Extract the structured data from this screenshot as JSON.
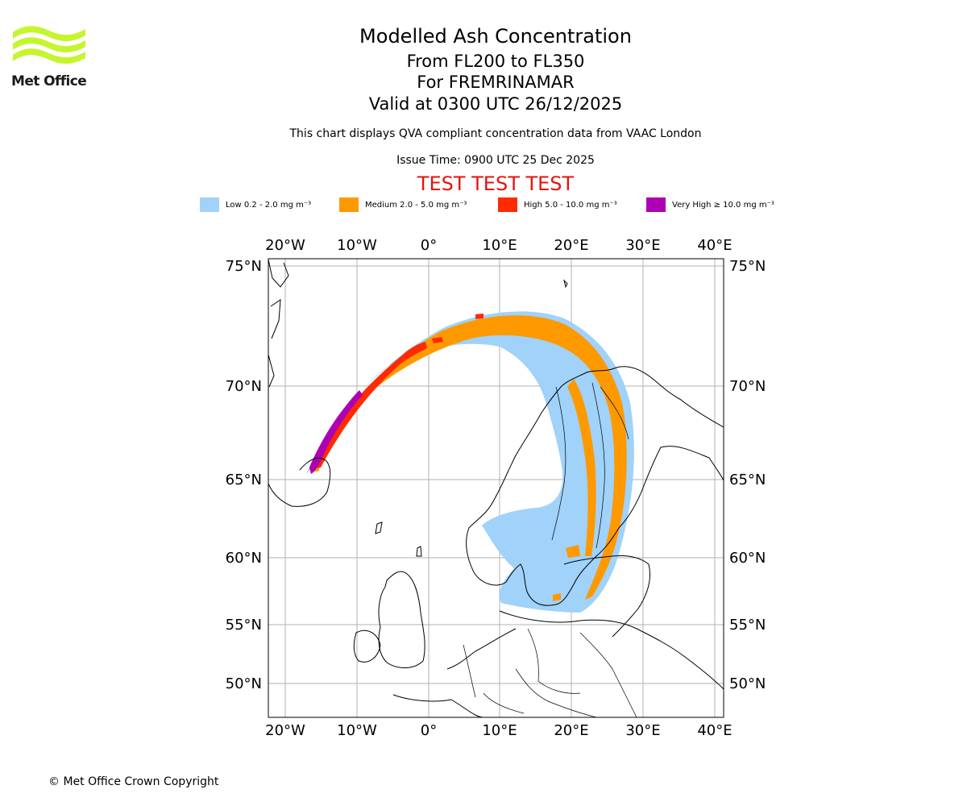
{
  "brand": {
    "name": "Met Office",
    "logo_color": "#c6f52e",
    "text_color": "#1a1a1a"
  },
  "header": {
    "title": "Modelled Ash Concentration",
    "levels": "From FL200 to FL350",
    "event": "For FREMRINAMAR",
    "valid": "Valid at 0300 UTC 26/12/2025",
    "compliance_note": "This chart displays QVA compliant concentration data from VAAC London",
    "issue_time": "Issue Time: 0900 UTC 25 Dec 2025",
    "test_banner": "TEST TEST TEST",
    "test_color": "#e8120c"
  },
  "legend": [
    {
      "label": "Low 0.2 - 2.0 mg m⁻³",
      "color": "#a0d2fa"
    },
    {
      "label": "Medium 2.0 - 5.0 mg m⁻³",
      "color": "#ff9900"
    },
    {
      "label": "High 5.0 - 10.0 mg m⁻³",
      "color": "#ff2a00"
    },
    {
      "label": "Very High  ≥  10.0 mg m⁻³",
      "color": "#ad00b4"
    }
  ],
  "map": {
    "lon_labels": [
      "20°W",
      "10°W",
      "0°",
      "10°E",
      "20°E",
      "30°E",
      "40°E"
    ],
    "lat_labels": [
      "75°N",
      "70°N",
      "65°N",
      "60°N",
      "55°N",
      "50°N"
    ],
    "grid_color": "#b0b0b0"
  },
  "footer": {
    "copyright": "© Met Office Crown Copyright"
  }
}
